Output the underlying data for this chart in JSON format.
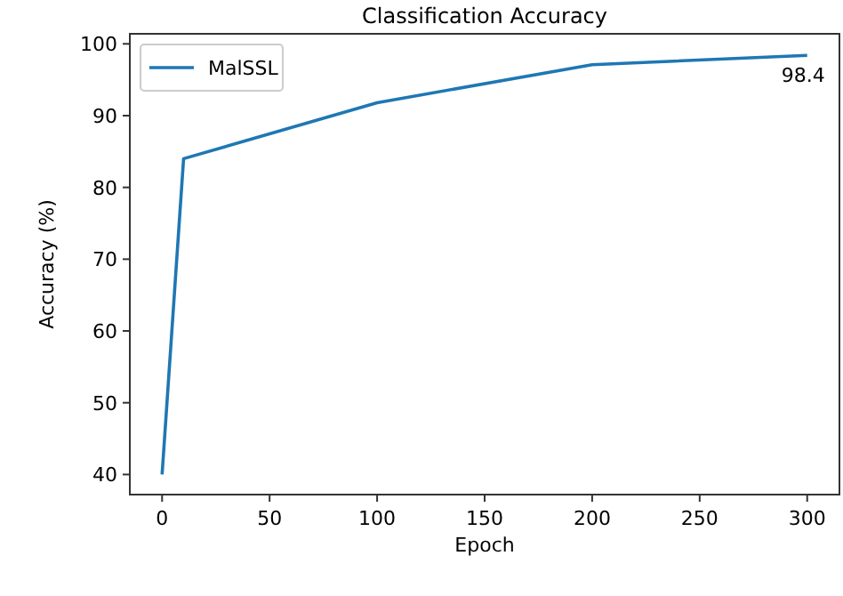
{
  "chart_data": {
    "type": "line",
    "title": "Classification Accuracy",
    "xlabel": "Epoch",
    "ylabel": "Accuracy (%)",
    "x": [
      0,
      10,
      100,
      200,
      300
    ],
    "series": [
      {
        "name": "MalSSL",
        "color": "#1f77b4",
        "values": [
          40,
          84,
          91.8,
          97.1,
          98.4
        ]
      }
    ],
    "xlim": [
      -15,
      315
    ],
    "ylim": [
      37.2,
      101.4
    ],
    "xticks": [
      0,
      50,
      100,
      150,
      200,
      250,
      300
    ],
    "yticks": [
      40,
      50,
      60,
      70,
      80,
      90,
      100
    ],
    "annotations": [
      {
        "text": "98.4",
        "x": 300,
        "y": 98.4
      }
    ],
    "legend": "top left",
    "grid": false,
    "marker": "none",
    "line_style": "solid"
  }
}
